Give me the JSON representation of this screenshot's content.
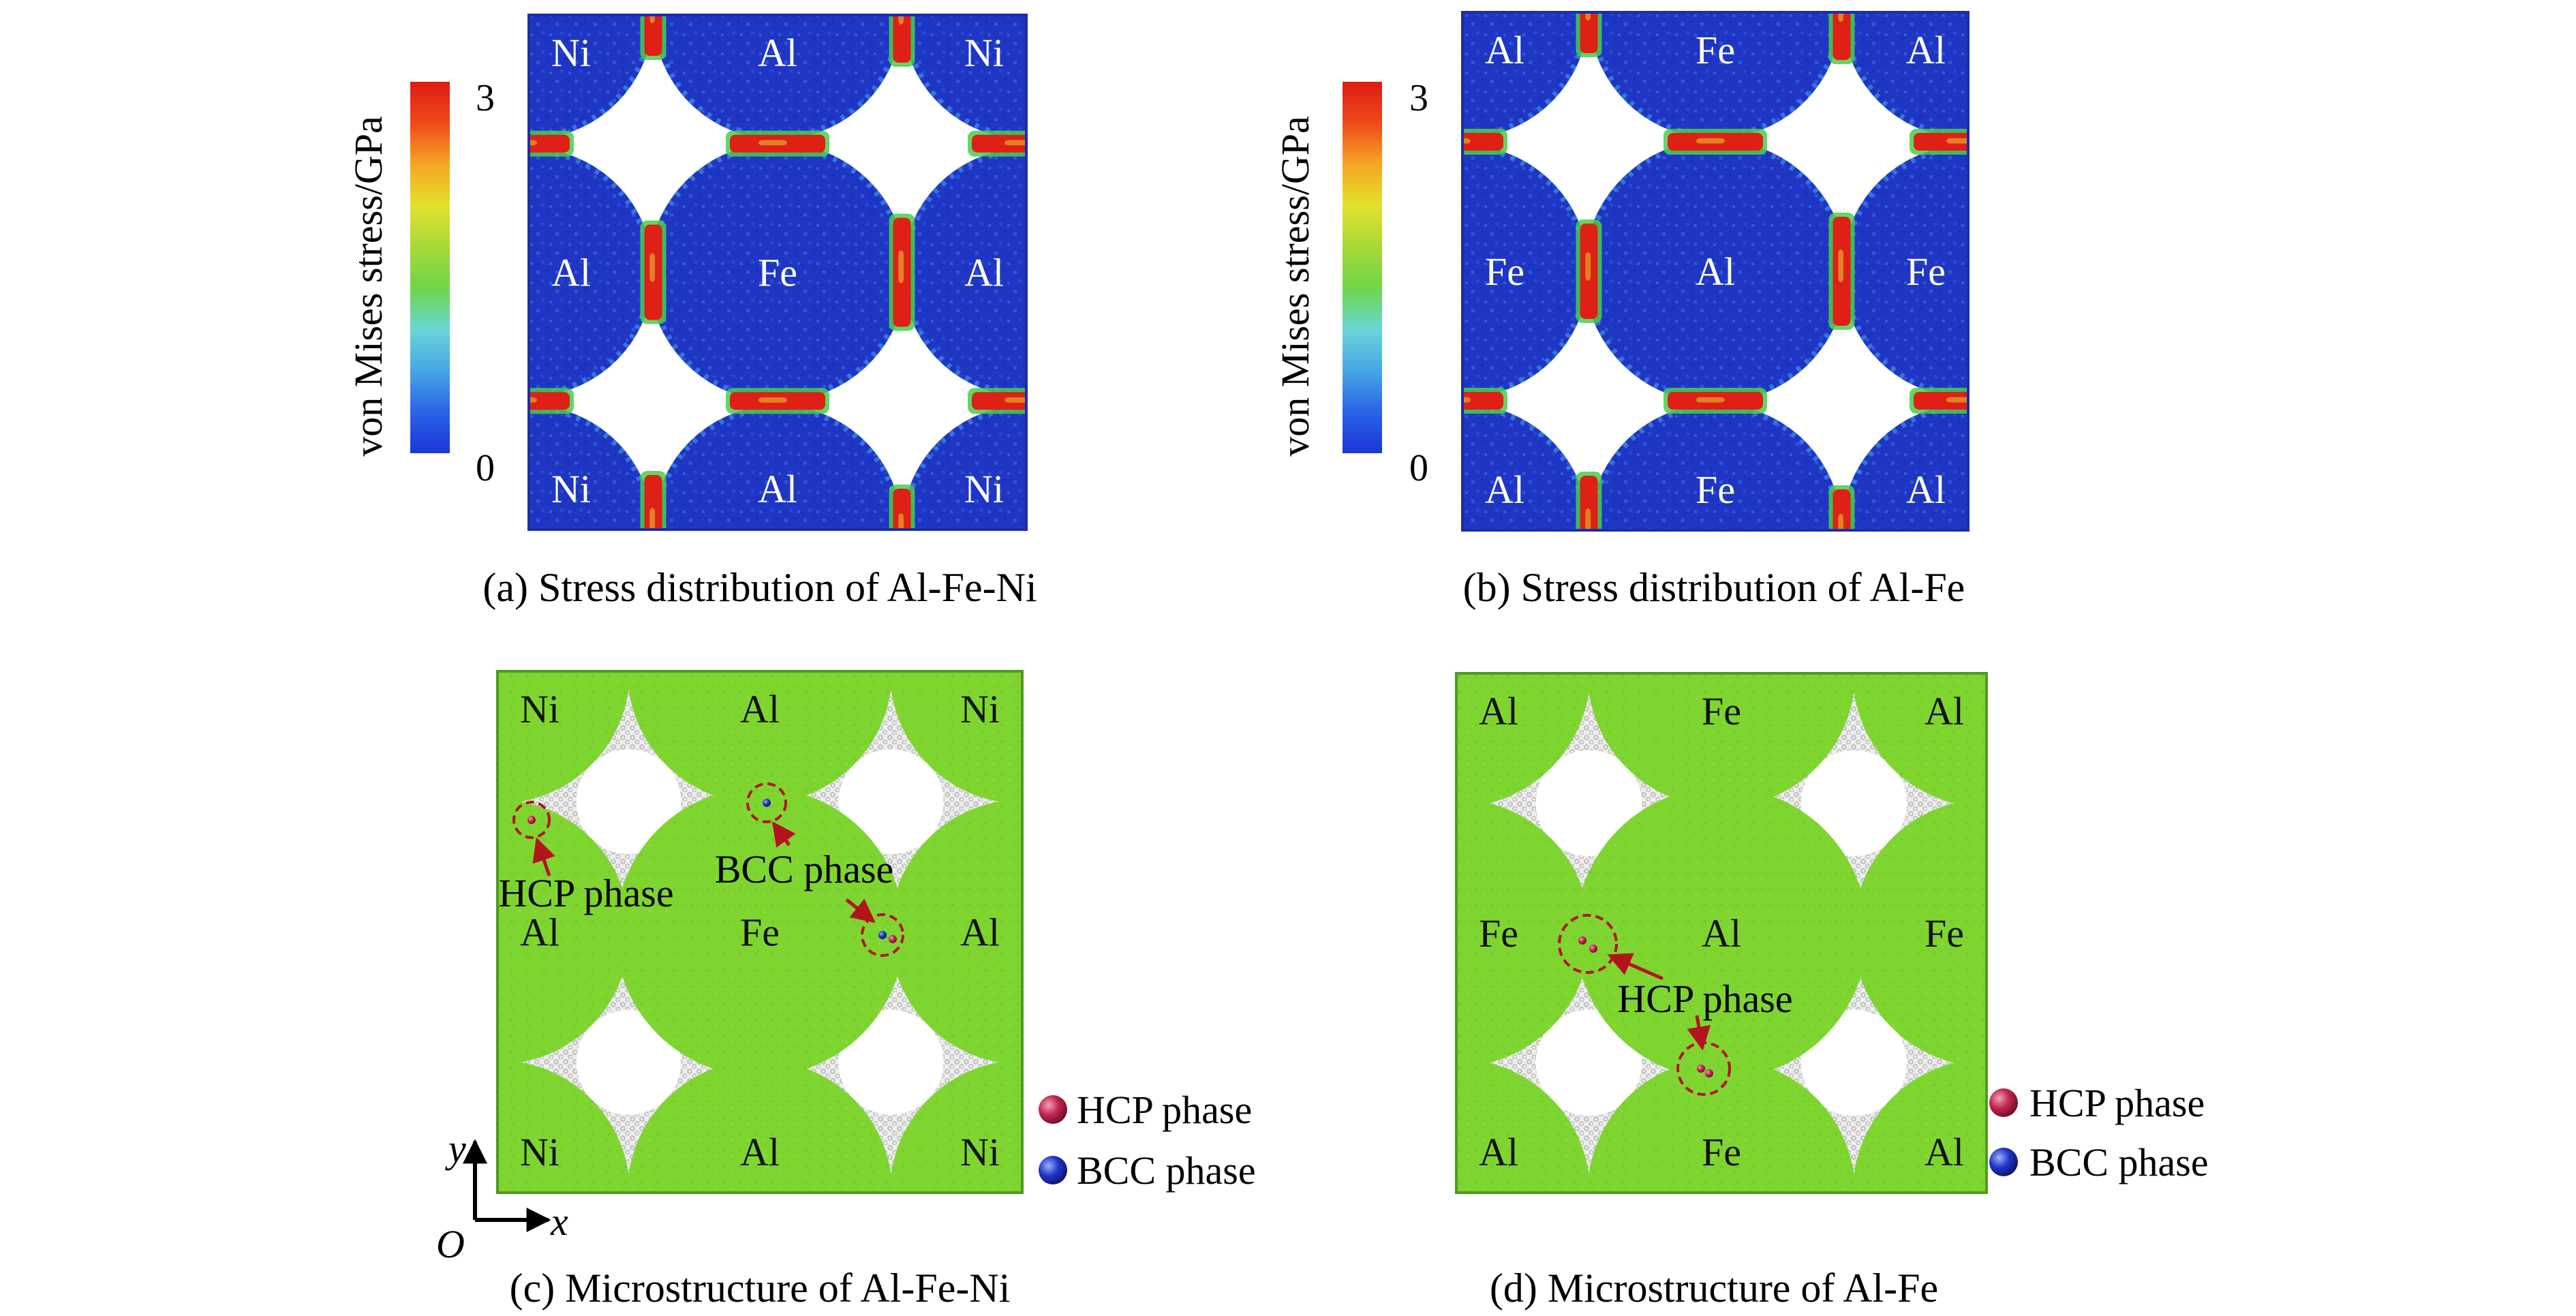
{
  "colorbar": {
    "title": "von Mises stress/GPa",
    "max": "3",
    "min": "0",
    "gradient": [
      "#1b35d6",
      "#2a64e8",
      "#45a6e6",
      "#69d6d6",
      "#6fd64a",
      "#a8d838",
      "#e3e12e",
      "#f5a623",
      "#ee4a1a",
      "#dd1c12"
    ]
  },
  "colors": {
    "stress_bg": "#1f36c4",
    "stress_hot": "#de2016",
    "stress_hot2": "#e7e031",
    "stress_warm": "#48cf4a",
    "green_grain": "#7fd530",
    "gb_atoms": "#d6d6d6",
    "marker": "#b3131b",
    "hcp_ball": "#b5204a",
    "bcc_ball": "#1b2fb8"
  },
  "panels": [
    {
      "id": "a",
      "kind": "stress",
      "caption": "(a) Stress distribution of Al-Fe-Ni",
      "grain_labels": {
        "corner": "Ni",
        "edge_h": "Al",
        "edge_v": "Al",
        "center": "Fe"
      }
    },
    {
      "id": "b",
      "kind": "stress",
      "caption": "(b) Stress distribution of Al-Fe",
      "grain_labels": {
        "corner": "Al",
        "edge_h": "Fe",
        "edge_v": "Fe",
        "center": "Al"
      }
    },
    {
      "id": "c",
      "kind": "micro",
      "caption": "(c) Microstructure of Al-Fe-Ni",
      "grain_labels": {
        "corner": "Ni",
        "edge_h": "Al",
        "edge_v": "Al",
        "center": "Fe"
      },
      "annotations": [
        "HCP phase",
        "BCC phase"
      ]
    },
    {
      "id": "d",
      "kind": "micro",
      "caption": "(d) Microstructure of Al-Fe",
      "grain_labels": {
        "corner": "Al",
        "edge_h": "Fe",
        "edge_v": "Fe",
        "center": "Al"
      },
      "annotations": [
        "HCP phase"
      ]
    }
  ],
  "legend": {
    "hcp": "HCP phase",
    "bcc": "BCC phase"
  },
  "axes": {
    "y": "y",
    "x": "x",
    "origin": "O"
  }
}
